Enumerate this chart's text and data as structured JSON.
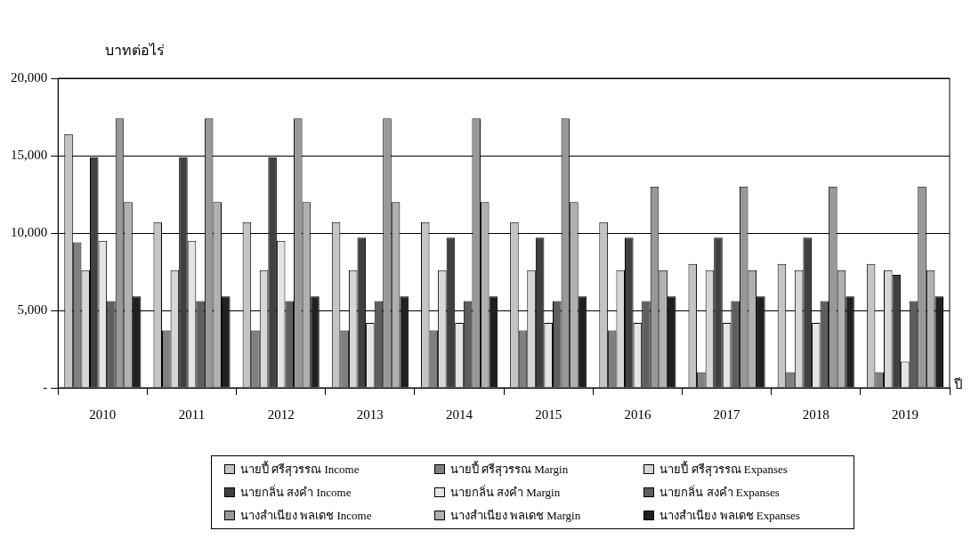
{
  "chart_data": {
    "type": "bar",
    "ylabel": "บาทต่อไร่",
    "xlabel": "ปี",
    "categories": [
      "2010",
      "2011",
      "2012",
      "2013",
      "2014",
      "2015",
      "2016",
      "2017",
      "2018",
      "2019"
    ],
    "series": [
      {
        "name": "นายปี้ ศรีสุวรรณ Income",
        "color": "#c4c4c4",
        "values": [
          16400,
          10700,
          10700,
          10700,
          10700,
          10700,
          10700,
          8000,
          8000,
          8000
        ]
      },
      {
        "name": "นายปี้ ศรีสุวรรณ Margin",
        "color": "#808080",
        "values": [
          9400,
          3700,
          3700,
          3700,
          3700,
          3700,
          3700,
          1000,
          1000,
          1000
        ]
      },
      {
        "name": "นายปี้ ศรีสุวรรณ Expanses",
        "color": "#d6d6d6",
        "values": [
          7600,
          7600,
          7600,
          7600,
          7600,
          7600,
          7600,
          7600,
          7600,
          7600
        ]
      },
      {
        "name": "นายกลิ่น สงคำ Income",
        "color": "#404040",
        "values": [
          14900,
          14900,
          14900,
          9700,
          9700,
          9700,
          9700,
          9700,
          9700,
          7300
        ]
      },
      {
        "name": "นายกลิ่น สงคำ Margin",
        "color": "#e4e4e4",
        "values": [
          9500,
          9500,
          9500,
          4200,
          4200,
          4200,
          4200,
          4200,
          4200,
          1700
        ]
      },
      {
        "name": "นายกลิ่น สงคำ Expanses",
        "color": "#5e5e5e",
        "values": [
          5600,
          5600,
          5600,
          5600,
          5600,
          5600,
          5600,
          5600,
          5600,
          5600
        ]
      },
      {
        "name": "นางสำเนียง พลเดช Income",
        "color": "#989898",
        "values": [
          17400,
          17400,
          17400,
          17400,
          17400,
          17400,
          13000,
          13000,
          13000,
          13000
        ]
      },
      {
        "name": "นางสำเนียง พลเดช Margin",
        "color": "#b0b0b0",
        "values": [
          12000,
          12000,
          12000,
          12000,
          12000,
          12000,
          7600,
          7600,
          7600,
          7600
        ]
      },
      {
        "name": "นางสำเนียง พลเดช Expanses",
        "color": "#202020",
        "values": [
          5900,
          5900,
          5900,
          5900,
          5900,
          5900,
          5900,
          5900,
          5900,
          5900
        ]
      }
    ],
    "ylim": [
      0,
      20000
    ],
    "yticks": [
      {
        "value": 0,
        "label": "-"
      },
      {
        "value": 5000,
        "label": "5,000"
      },
      {
        "value": 10000,
        "label": "10,000"
      },
      {
        "value": 15000,
        "label": "15,000"
      },
      {
        "value": 20000,
        "label": "20,000"
      }
    ],
    "grid": "y",
    "legend": "bottom"
  }
}
